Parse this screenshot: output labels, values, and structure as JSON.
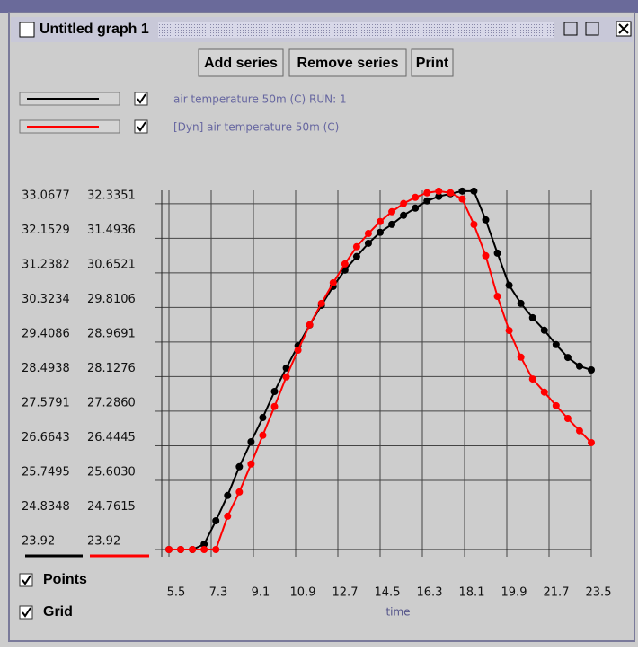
{
  "window": {
    "title": "Untitled graph 1"
  },
  "buttons": [
    "Add series",
    "Remove series",
    "Print"
  ],
  "options": [
    "Points",
    "Grid"
  ],
  "chart_data": {
    "type": "line",
    "xlabel": "time",
    "x": [
      5.5,
      6,
      6.5,
      7,
      7.5,
      8,
      8.5,
      9,
      9.5,
      10,
      10.5,
      11,
      11.5,
      12,
      12.5,
      13,
      13.5,
      14,
      14.5,
      15,
      15.5,
      16,
      16.5,
      17,
      17.5,
      18,
      18.5,
      19,
      19.5,
      20,
      20.5,
      21,
      21.5,
      22,
      22.5,
      23,
      23.5
    ],
    "series": [
      {
        "name": "air temperature 50m (C) RUN: 1",
        "color": "#000000",
        "visible": true,
        "values": [
          23.92,
          23.92,
          23.92,
          24.06,
          24.68,
          25.35,
          26.11,
          26.77,
          27.41,
          28.1,
          28.72,
          29.31,
          29.86,
          30.38,
          30.88,
          31.31,
          31.67,
          32.02,
          32.31,
          32.52,
          32.76,
          32.95,
          33.14,
          33.26,
          33.33,
          33.4,
          33.4,
          32.64,
          31.76,
          30.91,
          30.43,
          30.05,
          29.72,
          29.34,
          29.0,
          28.77,
          28.67
        ]
      },
      {
        "name": "[Dyn] air temperature 50m (C)",
        "color": "#ff0000",
        "visible": true,
        "axis": "y2",
        "values": [
          23.92,
          23.92,
          23.92,
          23.92,
          23.92,
          24.73,
          25.32,
          26.0,
          26.7,
          27.4,
          28.12,
          28.77,
          29.39,
          29.91,
          30.41,
          30.87,
          31.29,
          31.61,
          31.9,
          32.14,
          32.34,
          32.49,
          32.6,
          32.64,
          32.6,
          32.45,
          31.83,
          31.07,
          30.08,
          29.25,
          28.6,
          28.07,
          27.75,
          27.42,
          27.11,
          26.81,
          26.52
        ]
      }
    ],
    "xlim": [
      5.5,
      23.5
    ],
    "xticks": [
      5.5,
      7.3,
      9.1,
      10.9,
      12.7,
      14.5,
      16.3,
      18.1,
      19.9,
      21.7,
      23.5
    ],
    "ylim": [
      23.92,
      33.42
    ],
    "yticks": [
      23.92,
      24.8348,
      25.7495,
      26.6643,
      27.5791,
      28.4938,
      29.4086,
      30.3234,
      31.2382,
      32.1529,
      33.0677
    ],
    "y2lim": [
      23.92,
      32.66
    ],
    "y2ticks": [
      23.92,
      24.7615,
      {
        "value": 25.603,
        "label": "25.6030"
      },
      26.4445,
      {
        "value": 27.286,
        "label": "27.2860"
      },
      28.1276,
      28.9691,
      29.8106,
      30.6521,
      31.4936,
      32.3351
    ],
    "grid": true,
    "points": true
  }
}
